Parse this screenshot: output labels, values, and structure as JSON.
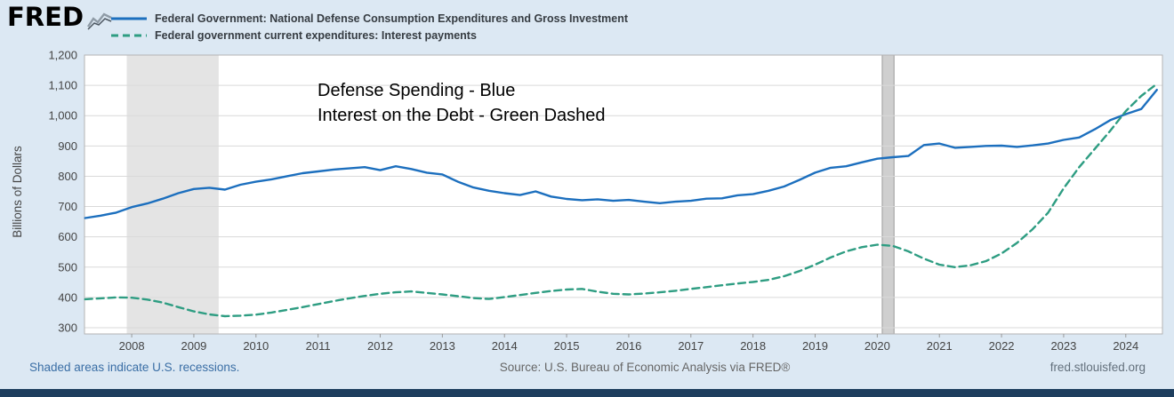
{
  "header": {
    "logo_text": "FRED",
    "legend": [
      {
        "label": "Federal Government: National Defense Consumption Expenditures and Gross Investment",
        "color": "#1c6fbe",
        "style": "solid"
      },
      {
        "label": "Federal government current expenditures: Interest payments",
        "color": "#2e9d82",
        "style": "dashed"
      }
    ]
  },
  "chart_data": {
    "type": "line",
    "title": "",
    "ylabel": "Billions of Dollars",
    "xlabel": "",
    "x_start": 2007.25,
    "x_step": 0.25,
    "x_min": 2007.24,
    "x_max": 2024.59,
    "ylim": [
      300,
      1200
    ],
    "y_ticks": [
      300,
      400,
      500,
      600,
      700,
      800,
      900,
      1000,
      1100,
      1200
    ],
    "x_ticks": [
      2008,
      2009,
      2010,
      2011,
      2012,
      2013,
      2014,
      2015,
      2016,
      2017,
      2018,
      2019,
      2020,
      2021,
      2022,
      2023,
      2024
    ],
    "grid": true,
    "legend_position": "top",
    "series": [
      {
        "name": "Federal Government: National Defense Consumption Expenditures and Gross Investment",
        "color": "#1c6fbe",
        "dash": null,
        "values": [
          662,
          670,
          680,
          698,
          710,
          726,
          744,
          758,
          762,
          756,
          772,
          782,
          790,
          800,
          810,
          816,
          822,
          826,
          830,
          820,
          833,
          824,
          812,
          806,
          782,
          763,
          752,
          744,
          738,
          750,
          733,
          725,
          721,
          724,
          719,
          722,
          716,
          711,
          716,
          719,
          726,
          727,
          737,
          741,
          752,
          766,
          788,
          812,
          828,
          833,
          846,
          858,
          863,
          867,
          903,
          908,
          894,
          897,
          900,
          901,
          897,
          902,
          908,
          920,
          928,
          955,
          985,
          1005,
          1022,
          1085
        ]
      },
      {
        "name": "Federal government current expenditures: Interest payments",
        "color": "#2e9d82",
        "dash": "8 5",
        "values": [
          394,
          397,
          400,
          399,
          393,
          383,
          368,
          354,
          344,
          338,
          340,
          343,
          350,
          359,
          368,
          378,
          388,
          397,
          405,
          412,
          417,
          420,
          415,
          410,
          404,
          398,
          395,
          401,
          408,
          415,
          421,
          426,
          428,
          419,
          412,
          410,
          413,
          417,
          422,
          428,
          434,
          440,
          446,
          451,
          458,
          470,
          487,
          508,
          532,
          552,
          566,
          574,
          570,
          552,
          528,
          508,
          500,
          506,
          520,
          545,
          580,
          625,
          680,
          760,
          830,
          890,
          950,
          1015,
          1065,
          1105
        ]
      }
    ],
    "recessions": [
      {
        "from": 2007.92,
        "to": 2009.4,
        "narrow": false
      },
      {
        "from": 2020.08,
        "to": 2020.27,
        "narrow": true
      }
    ],
    "annotation": [
      "Defense Spending - Blue",
      "Interest on the Debt - Green Dashed"
    ]
  },
  "colors": {
    "background": "#dce8f3",
    "plot_background": "#ffffff",
    "grid": "#d9d9d9",
    "plot_border": "#b3b3b3",
    "tick_text": "#444444",
    "recession_fill": "#e4e4e4",
    "recession_fill_narrow": "#cfcfcf",
    "recession_border_narrow": "#9b9b9b",
    "annotation_text": "#000000",
    "bottom_bar": "#1e3e5e"
  },
  "footer": {
    "recession_note": "Shaded areas indicate U.S. recessions.",
    "source": "Source: U.S. Bureau of Economic Analysis via FRED®",
    "site": "fred.stlouisfed.org"
  }
}
